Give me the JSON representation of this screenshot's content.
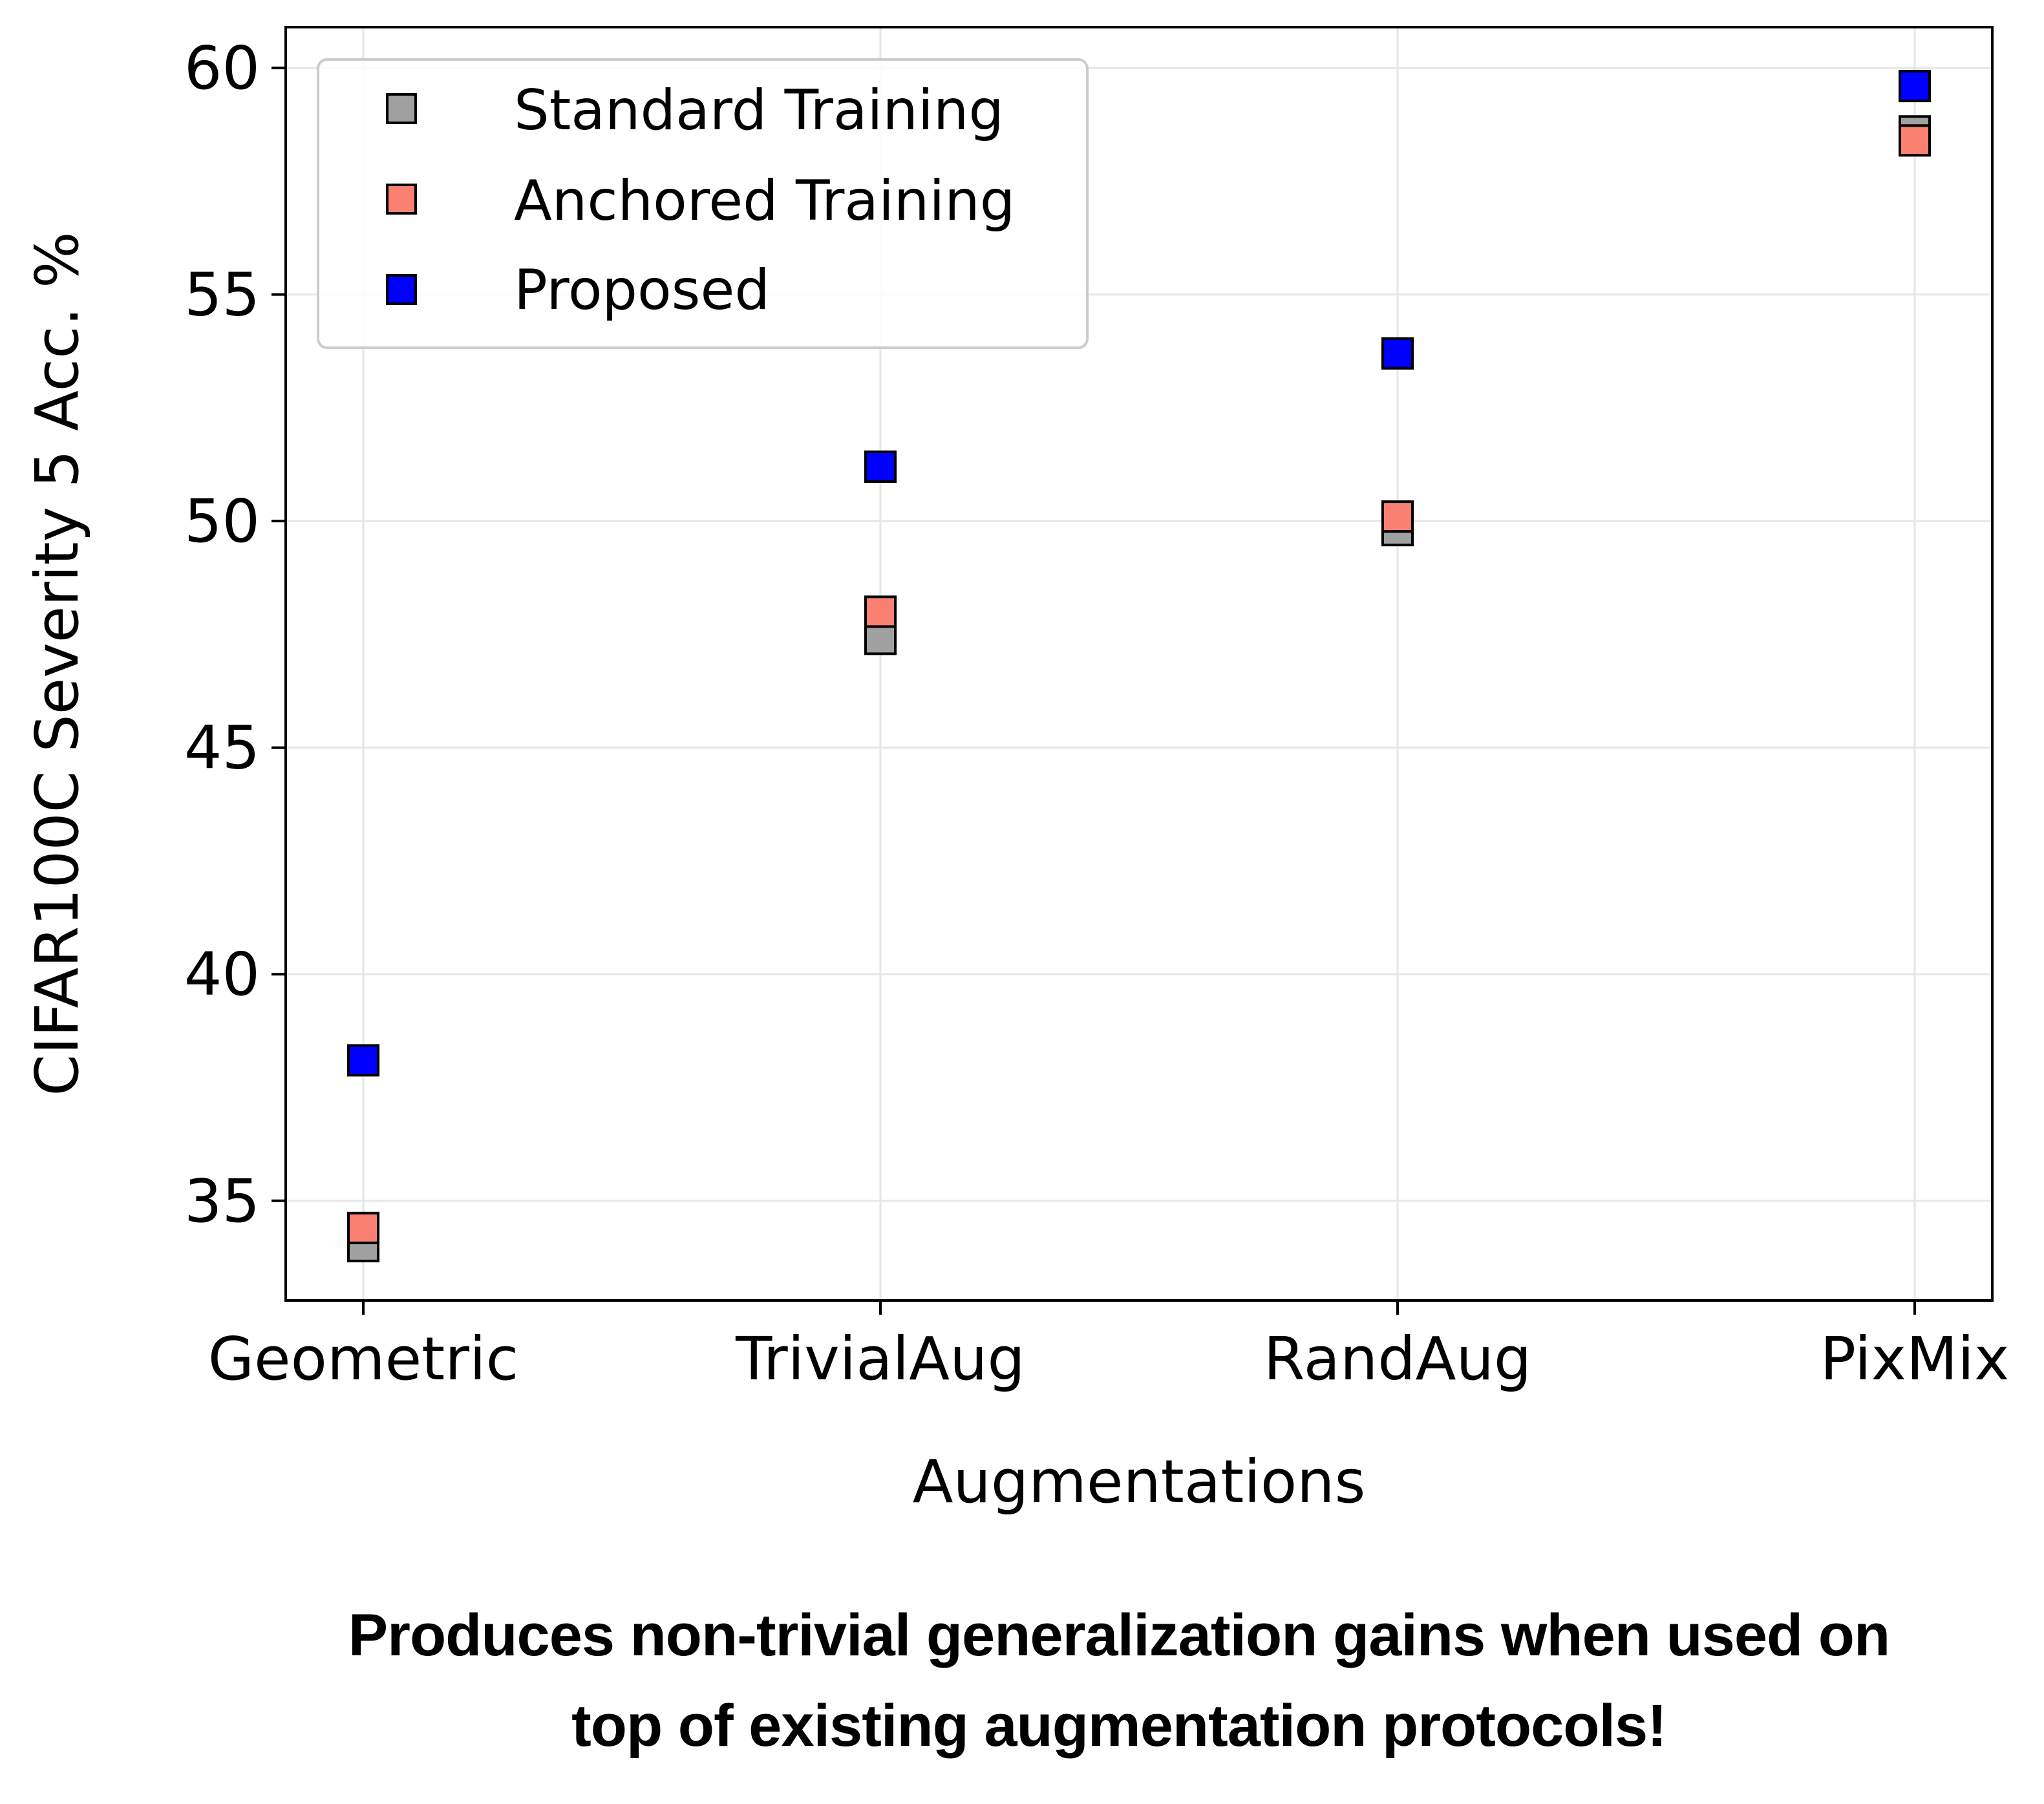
{
  "chart_data": {
    "type": "scatter",
    "categories": [
      "Geometric",
      "TrivialAug",
      "RandAug",
      "PixMix"
    ],
    "xlabel": "Augmentations",
    "ylabel": "CIFAR100C Severity 5 Acc. %",
    "ylim": [
      32.8,
      60.9
    ],
    "yticks": [
      35,
      40,
      45,
      50,
      55,
      60
    ],
    "grid": true,
    "legend_position": "top-left",
    "marker": "square",
    "series": [
      {
        "name": "Standard Training",
        "color": "#a0a0a0",
        "values": [
          34.0,
          47.4,
          49.8,
          58.6
        ]
      },
      {
        "name": "Anchored Training",
        "color": "#fa8072",
        "values": [
          34.4,
          48.0,
          50.1,
          58.4
        ]
      },
      {
        "name": "Proposed",
        "color": "#0000ff",
        "values": [
          38.1,
          51.2,
          53.7,
          59.6
        ]
      }
    ]
  },
  "caption": {
    "line1": "Produces non-trivial generalization gains when used on",
    "line2": "top of existing augmentation protocols!"
  }
}
